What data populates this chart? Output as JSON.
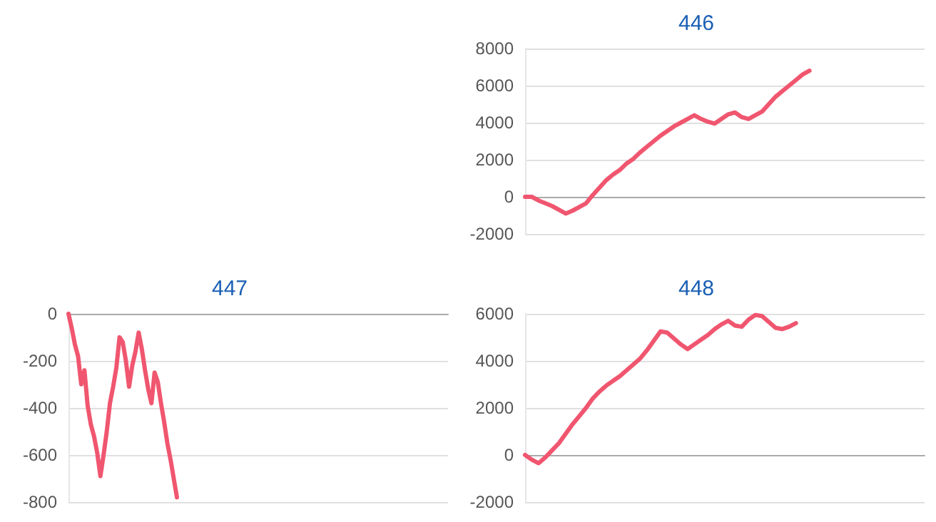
{
  "chart_data": [
    {
      "type": "line",
      "title": "446",
      "categories": [
        null,
        null,
        null,
        null,
        null,
        null,
        null,
        null,
        null,
        null,
        null,
        null,
        null,
        null,
        null,
        null,
        null,
        null,
        null,
        null,
        null,
        null,
        null,
        null,
        null,
        null,
        null,
        null,
        null,
        null,
        null,
        null,
        null,
        null,
        null,
        null,
        null,
        null,
        null,
        null,
        null,
        null,
        null,
        null,
        null,
        null,
        null,
        null,
        null,
        null,
        null,
        null,
        null,
        null,
        null,
        null,
        null,
        null,
        null,
        null
      ],
      "series": [
        {
          "color": "#f0566f",
          "values": [
            0,
            0,
            -200,
            -350,
            -500,
            -700,
            -900,
            -750,
            -550,
            -350,
            100,
            500,
            900,
            1200,
            1450,
            1800,
            2050,
            2400,
            2700,
            3000,
            3300,
            3550,
            3800,
            4000,
            4200,
            4400,
            4200,
            4050,
            3950,
            4200,
            4450,
            4550,
            4300,
            4200,
            4400,
            4600,
            5000,
            5400,
            5700,
            6000,
            6300,
            6600,
            6800,
            null,
            null,
            null,
            null,
            null,
            null,
            null,
            null,
            null,
            null,
            null,
            null,
            null,
            null,
            null,
            null,
            null
          ]
        }
      ],
      "ylim": [
        -2000,
        8000
      ],
      "yticks": [
        -2000,
        0,
        2000,
        4000,
        6000,
        8000
      ],
      "grid": "y",
      "tick_labels": "y",
      "line_style": "solid"
    },
    {
      "type": "line",
      "title": "447",
      "categories": [
        null,
        null,
        null,
        null,
        null,
        null,
        null,
        null,
        null,
        null,
        null,
        null,
        null,
        null,
        null,
        null,
        null,
        null,
        null,
        null,
        null,
        null,
        null,
        null,
        null,
        null,
        null,
        null,
        null,
        null,
        null,
        null,
        null,
        null,
        null,
        null,
        null,
        null,
        null,
        null,
        null,
        null,
        null,
        null,
        null,
        null,
        null,
        null,
        null,
        null,
        null,
        null,
        null,
        null,
        null,
        null,
        null,
        null,
        null,
        null,
        null,
        null,
        null,
        null,
        null,
        null,
        null,
        null,
        null,
        null,
        null,
        null,
        null,
        null,
        null,
        null,
        null,
        null,
        null,
        null,
        null,
        null,
        null,
        null,
        null,
        null,
        null,
        null,
        null,
        null,
        null,
        null,
        null,
        null,
        null,
        null,
        null,
        null,
        null,
        null,
        null,
        null,
        null,
        null,
        null,
        null,
        null,
        null,
        null,
        null,
        null,
        null,
        null,
        null,
        null,
        null,
        null,
        null,
        null,
        null
      ],
      "series": [
        {
          "color": "#f0566f",
          "values": [
            0,
            -60,
            -130,
            -180,
            -300,
            -240,
            -390,
            -470,
            -520,
            -590,
            -690,
            -600,
            -500,
            -380,
            -310,
            -230,
            -100,
            -120,
            -200,
            -310,
            -220,
            -160,
            -80,
            -150,
            -240,
            -320,
            -380,
            -250,
            -290,
            -380,
            -460,
            -550,
            -620,
            -700,
            -780,
            null,
            null,
            null,
            null,
            null,
            null,
            null,
            null,
            null,
            null,
            null,
            null,
            null,
            null,
            null,
            null,
            null,
            null,
            null,
            null,
            null,
            null,
            null,
            null,
            null,
            null,
            null,
            null,
            null,
            null,
            null,
            null,
            null,
            null,
            null,
            null,
            null,
            null,
            null,
            null,
            null,
            null,
            null,
            null,
            null,
            null,
            null,
            null,
            null,
            null,
            null,
            null,
            null,
            null,
            null,
            null,
            null,
            null,
            null,
            null,
            null,
            null,
            null,
            null,
            null,
            null,
            null,
            null,
            null,
            null,
            null,
            null,
            null,
            null,
            null,
            null,
            null,
            null,
            null,
            null,
            null,
            null,
            null,
            null,
            null
          ]
        }
      ],
      "ylim": [
        -800,
        0
      ],
      "yticks": [
        -800,
        -600,
        -400,
        -200,
        0
      ],
      "grid": "y",
      "tick_labels": "y",
      "line_style": "solid"
    },
    {
      "type": "line",
      "title": "448",
      "categories": [
        null,
        null,
        null,
        null,
        null,
        null,
        null,
        null,
        null,
        null,
        null,
        null,
        null,
        null,
        null,
        null,
        null,
        null,
        null,
        null,
        null,
        null,
        null,
        null,
        null,
        null,
        null,
        null,
        null,
        null,
        null,
        null,
        null,
        null,
        null,
        null,
        null,
        null,
        null,
        null,
        null,
        null,
        null,
        null,
        null,
        null,
        null,
        null,
        null,
        null,
        null,
        null,
        null,
        null,
        null,
        null,
        null,
        null,
        null,
        null
      ],
      "series": [
        {
          "color": "#f0566f",
          "values": [
            0,
            -200,
            -350,
            -100,
            200,
            500,
            900,
            1300,
            1650,
            2000,
            2400,
            2700,
            2950,
            3150,
            3350,
            3600,
            3850,
            4100,
            4450,
            4850,
            5250,
            5200,
            4950,
            4700,
            4500,
            4700,
            4900,
            5100,
            5350,
            5550,
            5700,
            5500,
            5450,
            5750,
            5950,
            5900,
            5650,
            5400,
            5350,
            5450,
            5600,
            null,
            null,
            null,
            null,
            null,
            null,
            null,
            null,
            null,
            null,
            null,
            null,
            null,
            null,
            null,
            null,
            null,
            null,
            null
          ]
        }
      ],
      "ylim": [
        -2000,
        6000
      ],
      "yticks": [
        -2000,
        0,
        2000,
        4000,
        6000
      ],
      "grid": "y",
      "tick_labels": "y",
      "line_style": "solid"
    }
  ]
}
